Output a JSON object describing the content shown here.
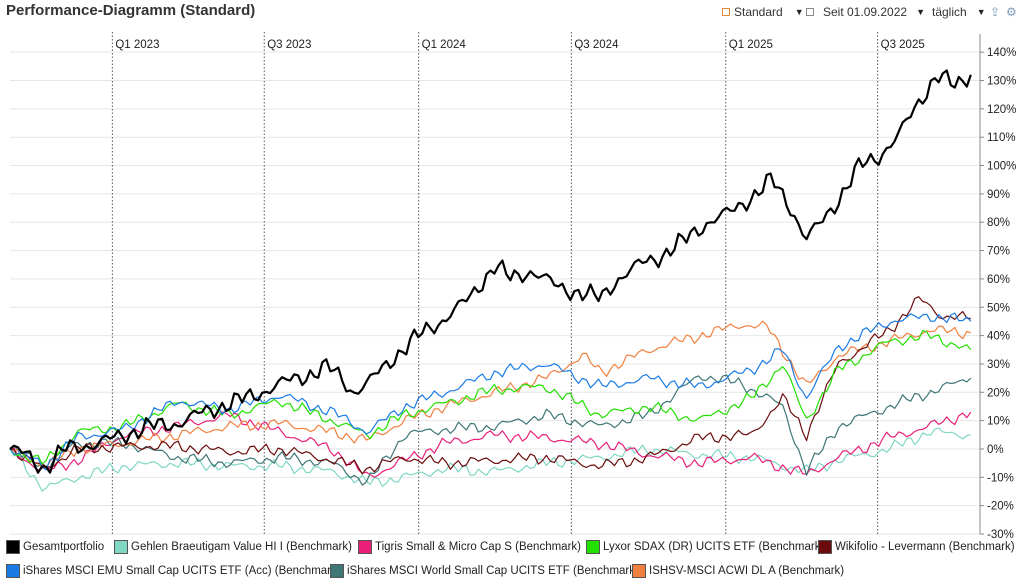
{
  "header": {
    "title": "Performance-Diagramm (Standard)",
    "view_label": "Standard",
    "since_label": "Seit 01.09.2022",
    "interval_label": "täglich",
    "export_icon": "upload-icon",
    "settings_icon": "gear-icon"
  },
  "chart_data": {
    "type": "line",
    "title": "Performance-Diagramm (Standard)",
    "x_start": "2022-09-01",
    "x_end": "2025-10-31",
    "quarter_labels": [
      "Q1 2023",
      "Q3 2023",
      "Q1 2024",
      "Q3 2024",
      "Q1 2025",
      "Q3 2025"
    ],
    "quarter_dates": [
      "2023-01-01",
      "2023-07-01",
      "2024-01-01",
      "2024-07-01",
      "2025-01-01",
      "2025-07-01"
    ],
    "ylim": [
      -30,
      145
    ],
    "yticks": [
      -30,
      -20,
      -10,
      0,
      10,
      20,
      30,
      40,
      50,
      60,
      70,
      80,
      90,
      100,
      110,
      120,
      130,
      140
    ],
    "ytick_labels": [
      "-30%",
      "-20%",
      "-10%",
      "0%",
      "10%",
      "20%",
      "30%",
      "40%",
      "50%",
      "60%",
      "70%",
      "80%",
      "90%",
      "100%",
      "110%",
      "120%",
      "130%",
      "140%"
    ],
    "series": [
      {
        "name": "Gesamtportfolio",
        "color": "#000000",
        "width": 2.2,
        "points": [
          [
            "2022-09-01",
            0
          ],
          [
            "2022-09-20",
            -2
          ],
          [
            "2022-10-12",
            -7
          ],
          [
            "2022-11-05",
            0
          ],
          [
            "2022-12-15",
            2
          ],
          [
            "2023-01-15",
            5
          ],
          [
            "2023-02-15",
            8
          ],
          [
            "2023-03-20",
            9
          ],
          [
            "2023-04-20",
            13
          ],
          [
            "2023-05-20",
            16
          ],
          [
            "2023-06-20",
            19
          ],
          [
            "2023-07-20",
            23
          ],
          [
            "2023-08-20",
            26
          ],
          [
            "2023-09-15",
            29
          ],
          [
            "2023-10-01",
            25
          ],
          [
            "2023-10-15",
            20
          ],
          [
            "2023-11-01",
            23
          ],
          [
            "2023-12-01",
            32
          ],
          [
            "2024-01-01",
            40
          ],
          [
            "2024-02-01",
            46
          ],
          [
            "2024-03-01",
            53
          ],
          [
            "2024-04-01",
            65
          ],
          [
            "2024-04-20",
            60
          ],
          [
            "2024-05-15",
            63
          ],
          [
            "2024-06-15",
            57
          ],
          [
            "2024-07-15",
            55
          ],
          [
            "2024-08-05",
            53
          ],
          [
            "2024-08-25",
            60
          ],
          [
            "2024-09-20",
            65
          ],
          [
            "2024-10-15",
            68
          ],
          [
            "2024-11-15",
            74
          ],
          [
            "2024-12-10",
            80
          ],
          [
            "2025-01-10",
            84
          ],
          [
            "2025-02-05",
            90
          ],
          [
            "2025-02-25",
            95
          ],
          [
            "2025-03-20",
            85
          ],
          [
            "2025-04-07",
            74
          ],
          [
            "2025-04-25",
            80
          ],
          [
            "2025-05-15",
            88
          ],
          [
            "2025-06-10",
            100
          ],
          [
            "2025-07-01",
            103
          ],
          [
            "2025-07-25",
            110
          ],
          [
            "2025-08-20",
            123
          ],
          [
            "2025-09-10",
            132
          ],
          [
            "2025-09-30",
            128
          ],
          [
            "2025-10-20",
            132
          ]
        ]
      },
      {
        "name": "Gehlen Braeutigam Value HI I (Benchmark)",
        "color": "#7fd7c4",
        "width": 1.2,
        "points": [
          [
            "2022-09-01",
            0
          ],
          [
            "2022-10-12",
            -14
          ],
          [
            "2022-11-20",
            -10
          ],
          [
            "2023-01-15",
            -6
          ],
          [
            "2023-03-20",
            -5
          ],
          [
            "2023-05-20",
            -6
          ],
          [
            "2023-07-20",
            -6
          ],
          [
            "2023-09-20",
            -8
          ],
          [
            "2023-11-01",
            -12
          ],
          [
            "2023-12-15",
            -10
          ],
          [
            "2024-02-01",
            -7
          ],
          [
            "2024-04-01",
            -8
          ],
          [
            "2024-06-01",
            -5
          ],
          [
            "2024-08-05",
            -3
          ],
          [
            "2024-10-01",
            0
          ],
          [
            "2024-12-01",
            -2
          ],
          [
            "2025-02-01",
            -3
          ],
          [
            "2025-04-07",
            -8
          ],
          [
            "2025-05-15",
            -4
          ],
          [
            "2025-07-15",
            0
          ],
          [
            "2025-09-01",
            6
          ],
          [
            "2025-10-20",
            5
          ]
        ]
      },
      {
        "name": "Tigris Small & Micro Cap S (Benchmark)",
        "color": "#e8207a",
        "width": 1.2,
        "points": [
          [
            "2022-09-01",
            0
          ],
          [
            "2022-10-12",
            -8
          ],
          [
            "2022-11-20",
            -4
          ],
          [
            "2023-01-15",
            5
          ],
          [
            "2023-03-20",
            8
          ],
          [
            "2023-05-20",
            12
          ],
          [
            "2023-07-20",
            6
          ],
          [
            "2023-09-20",
            0
          ],
          [
            "2023-11-01",
            -10
          ],
          [
            "2023-12-15",
            -4
          ],
          [
            "2024-02-01",
            2
          ],
          [
            "2024-04-01",
            5
          ],
          [
            "2024-06-01",
            4
          ],
          [
            "2024-08-05",
            2
          ],
          [
            "2024-10-01",
            -2
          ],
          [
            "2024-12-01",
            -5
          ],
          [
            "2025-02-01",
            -3
          ],
          [
            "2025-04-07",
            -9
          ],
          [
            "2025-05-15",
            -3
          ],
          [
            "2025-07-15",
            4
          ],
          [
            "2025-09-01",
            8
          ],
          [
            "2025-10-20",
            13
          ]
        ]
      },
      {
        "name": "Lyxor SDAX (DR) UCITS ETF (Benchmark)",
        "color": "#22e000",
        "width": 1.2,
        "points": [
          [
            "2022-09-01",
            0
          ],
          [
            "2022-10-12",
            -5
          ],
          [
            "2022-11-20",
            6
          ],
          [
            "2023-01-15",
            8
          ],
          [
            "2023-03-20",
            16
          ],
          [
            "2023-05-20",
            12
          ],
          [
            "2023-07-20",
            17
          ],
          [
            "2023-09-20",
            10
          ],
          [
            "2023-11-01",
            5
          ],
          [
            "2023-12-15",
            12
          ],
          [
            "2024-02-01",
            16
          ],
          [
            "2024-04-01",
            21
          ],
          [
            "2024-06-01",
            22
          ],
          [
            "2024-08-05",
            12
          ],
          [
            "2024-10-01",
            15
          ],
          [
            "2024-12-01",
            10
          ],
          [
            "2025-02-01",
            18
          ],
          [
            "2025-03-10",
            30
          ],
          [
            "2025-04-07",
            10
          ],
          [
            "2025-05-15",
            28
          ],
          [
            "2025-07-15",
            38
          ],
          [
            "2025-09-01",
            40
          ],
          [
            "2025-10-20",
            35
          ]
        ]
      },
      {
        "name": "Wikifolio - Levermann (Benchmark)",
        "color": "#6b0c0c",
        "width": 1.2,
        "points": [
          [
            "2022-09-01",
            0
          ],
          [
            "2022-10-12",
            -7
          ],
          [
            "2022-11-20",
            0
          ],
          [
            "2023-01-15",
            1
          ],
          [
            "2023-03-20",
            1
          ],
          [
            "2023-05-20",
            -1
          ],
          [
            "2023-07-20",
            0
          ],
          [
            "2023-09-20",
            -4
          ],
          [
            "2023-11-01",
            -7
          ],
          [
            "2023-12-15",
            -3
          ],
          [
            "2024-02-01",
            -5
          ],
          [
            "2024-04-01",
            -4
          ],
          [
            "2024-06-01",
            -3
          ],
          [
            "2024-08-05",
            -6
          ],
          [
            "2024-10-01",
            -3
          ],
          [
            "2024-12-01",
            4
          ],
          [
            "2025-02-01",
            5
          ],
          [
            "2025-03-10",
            18
          ],
          [
            "2025-04-07",
            5
          ],
          [
            "2025-05-15",
            30
          ],
          [
            "2025-07-15",
            42
          ],
          [
            "2025-08-20",
            53
          ],
          [
            "2025-09-15",
            47
          ],
          [
            "2025-10-20",
            46
          ]
        ]
      },
      {
        "name": "iShares MSCI EMU Small Cap UCITS ETF (Acc) (Benchmark)",
        "color": "#1a7be6",
        "width": 1.2,
        "points": [
          [
            "2022-09-01",
            0
          ],
          [
            "2022-10-12",
            -6
          ],
          [
            "2022-11-20",
            4
          ],
          [
            "2023-01-15",
            7
          ],
          [
            "2023-03-20",
            17
          ],
          [
            "2023-05-20",
            14
          ],
          [
            "2023-07-20",
            19
          ],
          [
            "2023-09-20",
            13
          ],
          [
            "2023-11-01",
            6
          ],
          [
            "2023-12-15",
            15
          ],
          [
            "2024-02-01",
            20
          ],
          [
            "2024-04-01",
            27
          ],
          [
            "2024-06-01",
            30
          ],
          [
            "2024-08-05",
            22
          ],
          [
            "2024-10-01",
            25
          ],
          [
            "2024-12-01",
            22
          ],
          [
            "2025-02-01",
            28
          ],
          [
            "2025-03-10",
            35
          ],
          [
            "2025-04-07",
            18
          ],
          [
            "2025-05-15",
            36
          ],
          [
            "2025-07-15",
            45
          ],
          [
            "2025-09-01",
            47
          ],
          [
            "2025-10-20",
            45
          ]
        ]
      },
      {
        "name": "iShares MSCI World Small Cap UCITS ETF (Benchmark)",
        "color": "#3f7676",
        "width": 1.2,
        "points": [
          [
            "2022-09-01",
            0
          ],
          [
            "2022-10-12",
            -6
          ],
          [
            "2022-11-20",
            2
          ],
          [
            "2023-01-15",
            2
          ],
          [
            "2023-03-20",
            -3
          ],
          [
            "2023-05-20",
            -5
          ],
          [
            "2023-07-20",
            -3
          ],
          [
            "2023-09-20",
            -5
          ],
          [
            "2023-11-01",
            -12
          ],
          [
            "2023-12-15",
            5
          ],
          [
            "2024-02-01",
            7
          ],
          [
            "2024-04-01",
            8
          ],
          [
            "2024-06-01",
            12
          ],
          [
            "2024-08-05",
            8
          ],
          [
            "2024-10-01",
            12
          ],
          [
            "2024-12-01",
            26
          ],
          [
            "2025-01-20",
            23
          ],
          [
            "2025-03-10",
            15
          ],
          [
            "2025-04-07",
            -8
          ],
          [
            "2025-05-15",
            8
          ],
          [
            "2025-07-15",
            15
          ],
          [
            "2025-09-01",
            20
          ],
          [
            "2025-10-20",
            25
          ]
        ]
      },
      {
        "name": "ISHSV-MSCI ACWI DL A (Benchmark)",
        "color": "#f08040",
        "width": 1.2,
        "points": [
          [
            "2022-09-01",
            0
          ],
          [
            "2022-10-12",
            -6
          ],
          [
            "2022-11-20",
            0
          ],
          [
            "2023-01-15",
            2
          ],
          [
            "2023-03-20",
            5
          ],
          [
            "2023-05-20",
            8
          ],
          [
            "2023-07-20",
            9
          ],
          [
            "2023-09-20",
            6
          ],
          [
            "2023-11-01",
            3
          ],
          [
            "2023-12-15",
            10
          ],
          [
            "2024-02-01",
            15
          ],
          [
            "2024-04-01",
            20
          ],
          [
            "2024-06-01",
            25
          ],
          [
            "2024-07-15",
            33
          ],
          [
            "2024-08-05",
            27
          ],
          [
            "2024-10-01",
            35
          ],
          [
            "2024-12-01",
            40
          ],
          [
            "2025-01-20",
            44
          ],
          [
            "2025-02-20",
            43
          ],
          [
            "2025-04-07",
            22
          ],
          [
            "2025-05-15",
            33
          ],
          [
            "2025-07-15",
            38
          ],
          [
            "2025-09-01",
            42
          ],
          [
            "2025-10-20",
            41
          ]
        ]
      }
    ],
    "legend": [
      "Gesamtportfolio",
      "Gehlen Braeutigam Value HI I (Benchmark)",
      "Tigris Small & Micro Cap S (Benchmark)",
      "Lyxor SDAX (DR) UCITS ETF (Benchmark)",
      "Wikifolio - Levermann (Benchmark)",
      "iShares MSCI EMU Small Cap UCITS ETF (Acc) (Benchmark)",
      "iShares MSCI World Small Cap UCITS ETF (Benchmark)",
      "ISHSV-MSCI ACWI DL A (Benchmark)"
    ],
    "legend_position": "bottom"
  }
}
